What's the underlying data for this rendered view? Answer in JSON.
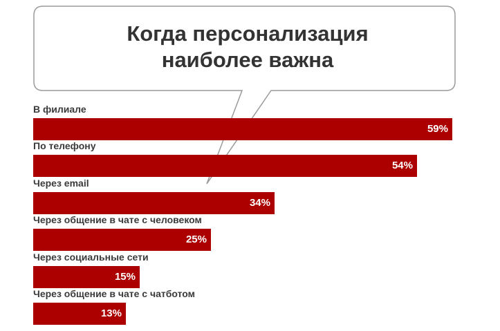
{
  "chart_data": {
    "type": "bar",
    "orientation": "horizontal",
    "title": "Когда персонализация наиболее важна",
    "title_lines": [
      "Когда персонализация",
      "наиболее важна"
    ],
    "categories": [
      "В филиале",
      "По телефону",
      "Через email",
      "Через общение в чате с человеком",
      "Через социальные сети",
      "Через общение в чате с чатботом"
    ],
    "values": [
      59,
      54,
      34,
      25,
      15,
      13
    ],
    "value_labels": [
      "59%",
      "54%",
      "34%",
      "25%",
      "15%",
      "13%"
    ],
    "unit": "%",
    "bar_color": "#ac0000",
    "grid": false,
    "legend": "none"
  }
}
